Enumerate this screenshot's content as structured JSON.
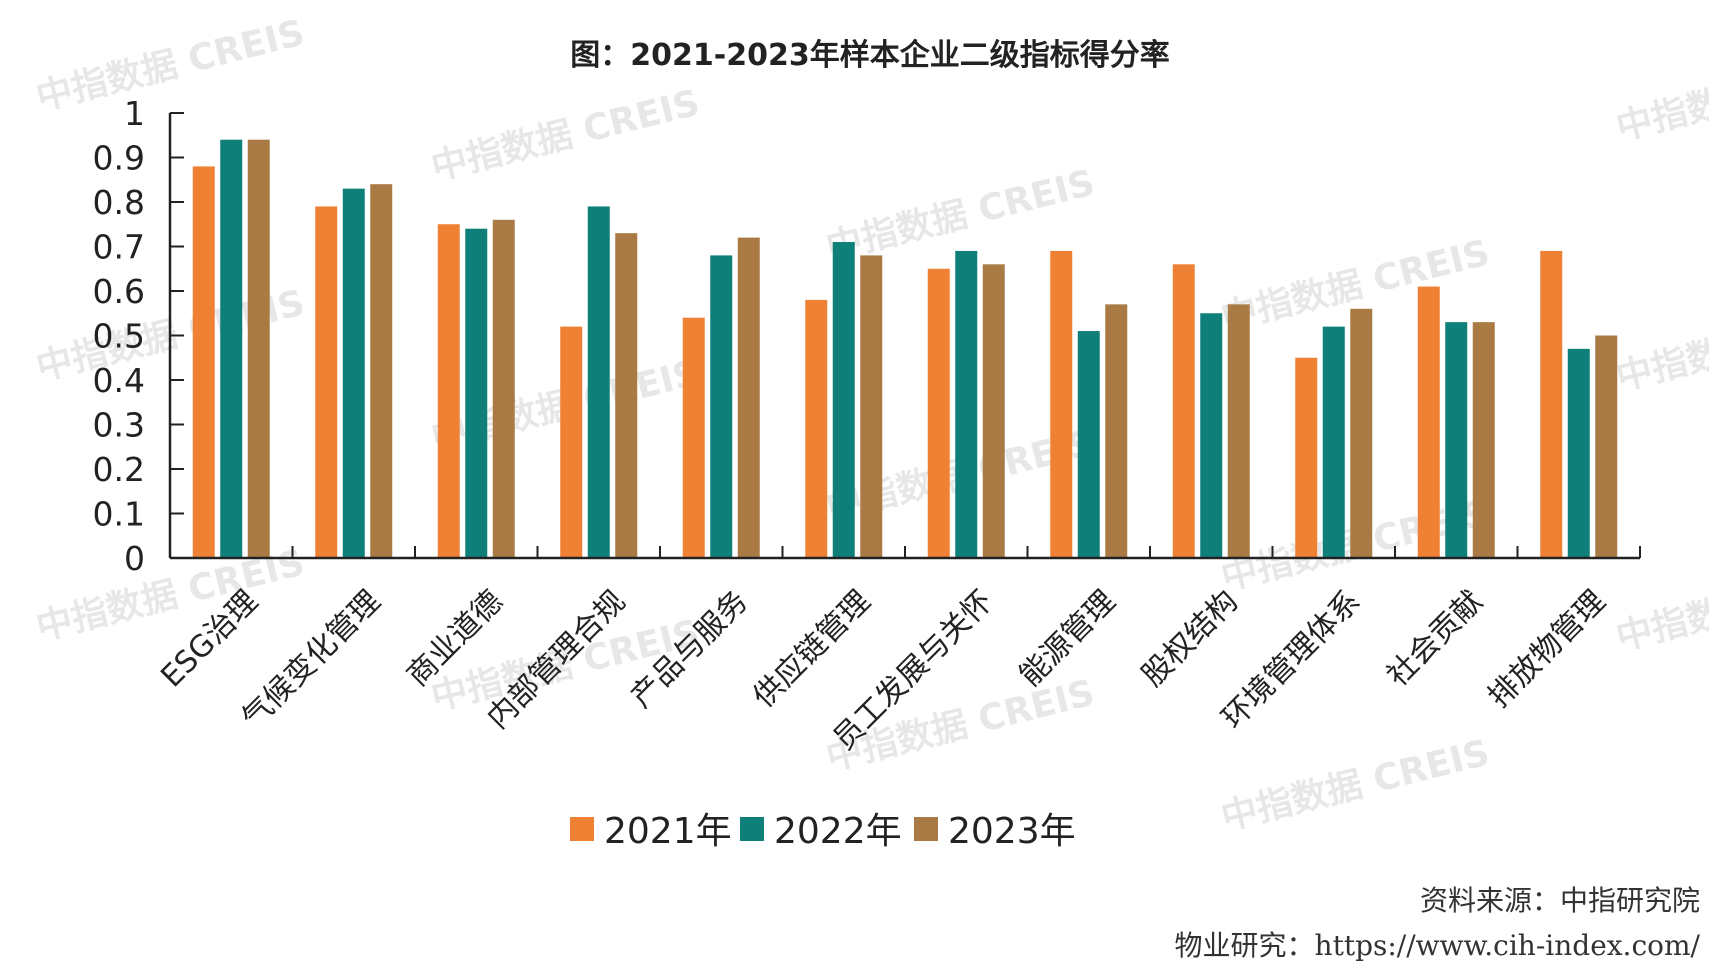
{
  "chart_data": {
    "type": "bar",
    "title": "图：2021-2023年样本企业二级指标得分率",
    "categories": [
      "ESG治理",
      "气候变化管理",
      "商业道德",
      "内部管理合规",
      "产品与服务",
      "供应链管理",
      "员工发展与关怀",
      "能源管理",
      "股权结构",
      "环境管理体系",
      "社会贡献",
      "排放物管理"
    ],
    "series": [
      {
        "name": "2021年",
        "color": "#ee8133",
        "values": [
          0.88,
          0.79,
          0.75,
          0.52,
          0.54,
          0.58,
          0.65,
          0.69,
          0.66,
          0.45,
          0.61,
          0.69
        ]
      },
      {
        "name": "2022年",
        "color": "#0f7f79",
        "values": [
          0.94,
          0.83,
          0.74,
          0.79,
          0.68,
          0.71,
          0.69,
          0.51,
          0.55,
          0.52,
          0.53,
          0.47
        ]
      },
      {
        "name": "2023年",
        "color": "#a97a43",
        "values": [
          0.94,
          0.84,
          0.76,
          0.73,
          0.72,
          0.68,
          0.66,
          0.57,
          0.57,
          0.56,
          0.53,
          0.5
        ]
      }
    ],
    "yticks": [
      "0",
      "0.1",
      "0.2",
      "0.3",
      "0.4",
      "0.5",
      "0.6",
      "0.7",
      "0.8",
      "0.9",
      "1"
    ],
    "ylim": [
      0,
      1
    ],
    "legend_position": "bottom-center",
    "grid": false
  },
  "source": "资料来源：中指研究院",
  "footer": "物业研究：https://www.cih-index.com/",
  "watermark": "中指数据 CREIS"
}
